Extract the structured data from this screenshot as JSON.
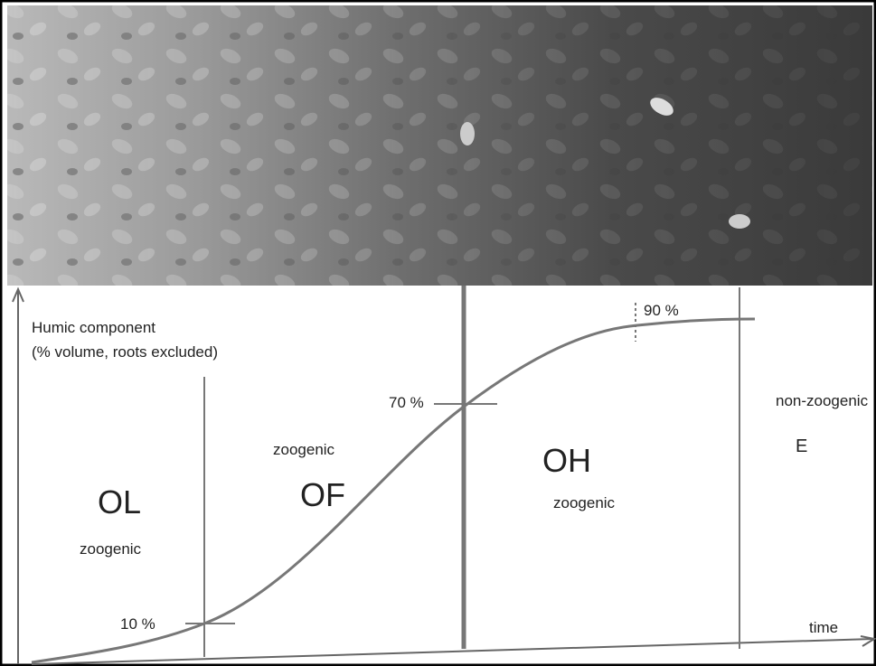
{
  "y_axis": {
    "title": "Humic component",
    "subtitle": "(% volume, roots excluded)"
  },
  "x_axis": {
    "title": "time"
  },
  "markers": [
    "10 %",
    "70 %",
    "90 %"
  ],
  "horizons": [
    {
      "code": "OL",
      "kind": "zoogenic"
    },
    {
      "code": "OF",
      "kind": "zoogenic"
    },
    {
      "code": "OH",
      "kind": "zoogenic"
    },
    {
      "code": "E",
      "kind": "non-zoogenic"
    }
  ]
}
